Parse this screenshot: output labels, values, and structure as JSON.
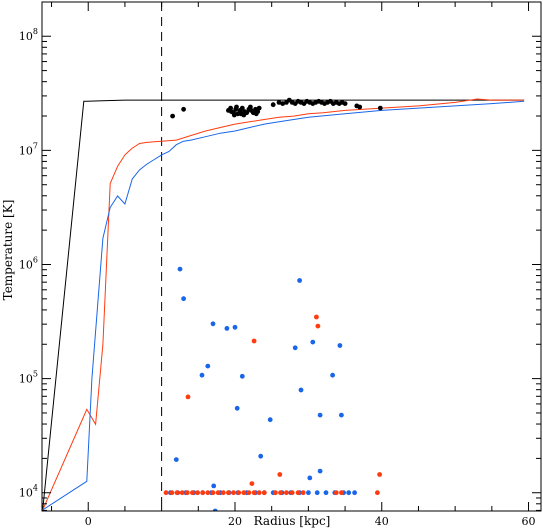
{
  "chart_data": {
    "type": "scatter",
    "title": "",
    "xlabel": "Radius [kpc]",
    "ylabel": "Temperature [K]",
    "xlim": [
      -6.3,
      61.7
    ],
    "ylim_log10": [
      3.84,
      8.3
    ],
    "yscale": "log",
    "grid": false,
    "x_ticks": [
      "0",
      "20",
      "40",
      "60"
    ],
    "x_tick_values": [
      0,
      20,
      40,
      60
    ],
    "y_ticks": [
      {
        "base": "10",
        "exp": "4",
        "value": 4
      },
      {
        "base": "10",
        "exp": "5",
        "value": 5
      },
      {
        "base": "10",
        "exp": "6",
        "value": 6
      },
      {
        "base": "10",
        "exp": "7",
        "value": 7
      },
      {
        "base": "10",
        "exp": "8",
        "value": 8
      }
    ],
    "vline": {
      "x": 10,
      "style": "dashed",
      "color": "#000000"
    },
    "colors": {
      "black": "#000000",
      "red": "#ff3c10",
      "blue": "#1a66e8"
    },
    "series": [
      {
        "kind": "line",
        "color": "#000000",
        "x": [
          -6.2,
          -0.6,
          -0.2,
          2,
          5,
          8,
          10,
          12,
          15,
          20,
          25,
          30,
          35,
          40,
          45,
          50,
          55,
          59.4
        ],
        "logT": [
          3.85,
          7.43,
          7.43,
          7.435,
          7.44,
          7.44,
          7.44,
          7.44,
          7.44,
          7.44,
          7.44,
          7.44,
          7.44,
          7.44,
          7.44,
          7.44,
          7.44,
          7.44
        ]
      },
      {
        "kind": "line",
        "color": "#ff3c10",
        "x": [
          -6.2,
          -0.2,
          1,
          2,
          3,
          4,
          5,
          6,
          7,
          8,
          9,
          10,
          12,
          14,
          16,
          18,
          20,
          22,
          24,
          26,
          28,
          30,
          32,
          35,
          40,
          45,
          50,
          53,
          55,
          59.4
        ],
        "logT": [
          3.85,
          4.73,
          4.6,
          5.3,
          6.71,
          6.86,
          6.96,
          7.02,
          7.06,
          7.07,
          7.075,
          7.08,
          7.09,
          7.13,
          7.17,
          7.2,
          7.23,
          7.25,
          7.27,
          7.29,
          7.3,
          7.32,
          7.33,
          7.35,
          7.37,
          7.39,
          7.42,
          7.45,
          7.44,
          7.44
        ]
      },
      {
        "kind": "line",
        "color": "#1a66e8",
        "x": [
          -6.2,
          -0.2,
          0.5,
          2,
          3,
          4,
          5,
          6,
          7,
          8,
          9,
          10,
          11,
          12,
          13,
          14,
          16,
          18,
          20,
          22,
          24,
          26,
          28,
          30,
          35,
          40,
          45,
          50,
          55,
          59.4
        ],
        "logT": [
          3.85,
          4.1,
          5.0,
          6.23,
          6.5,
          6.6,
          6.53,
          6.75,
          6.83,
          6.88,
          6.92,
          6.96,
          6.99,
          7.05,
          7.08,
          7.09,
          7.12,
          7.15,
          7.17,
          7.2,
          7.23,
          7.25,
          7.27,
          7.29,
          7.32,
          7.35,
          7.37,
          7.39,
          7.41,
          7.43
        ]
      },
      {
        "kind": "points",
        "color": "#000000",
        "points": [
          [
            11.5,
            7.3
          ],
          [
            13,
            7.36
          ],
          [
            19.1,
            7.35
          ],
          [
            19.5,
            7.34
          ],
          [
            19.8,
            7.33
          ],
          [
            20.1,
            7.36
          ],
          [
            20.4,
            7.32
          ],
          [
            20.7,
            7.35
          ],
          [
            21,
            7.37
          ],
          [
            21.3,
            7.34
          ],
          [
            21.6,
            7.33
          ],
          [
            21.9,
            7.36
          ],
          [
            22.2,
            7.35
          ],
          [
            22.5,
            7.33
          ],
          [
            22.8,
            7.36
          ],
          [
            23.1,
            7.34
          ],
          [
            19.4,
            7.37
          ],
          [
            20.2,
            7.38
          ],
          [
            21.2,
            7.31
          ],
          [
            22.1,
            7.38
          ],
          [
            23.3,
            7.37
          ],
          [
            20.8,
            7.32
          ],
          [
            22.9,
            7.32
          ],
          [
            19.9,
            7.31
          ],
          [
            25.2,
            7.4
          ],
          [
            26,
            7.42
          ],
          [
            26.5,
            7.41
          ],
          [
            27,
            7.42
          ],
          [
            27.4,
            7.44
          ],
          [
            27.8,
            7.42
          ],
          [
            28.2,
            7.41
          ],
          [
            28.6,
            7.43
          ],
          [
            29,
            7.42
          ],
          [
            29.4,
            7.41
          ],
          [
            29.8,
            7.43
          ],
          [
            30.2,
            7.42
          ],
          [
            30.6,
            7.41
          ],
          [
            31,
            7.42
          ],
          [
            31.4,
            7.43
          ],
          [
            31.8,
            7.42
          ],
          [
            32.2,
            7.41
          ],
          [
            32.6,
            7.42
          ],
          [
            33,
            7.43
          ],
          [
            33.4,
            7.41
          ],
          [
            33.8,
            7.42
          ],
          [
            34.2,
            7.41
          ],
          [
            34.6,
            7.42
          ],
          [
            35,
            7.41
          ],
          [
            36.6,
            7.39
          ],
          [
            37,
            7.38
          ],
          [
            39.8,
            7.37
          ]
        ]
      },
      {
        "kind": "points",
        "color": "#1a66e8",
        "points": [
          [
            12.5,
            5.96
          ],
          [
            13,
            5.7
          ],
          [
            17,
            5.48
          ],
          [
            20,
            5.45
          ],
          [
            18.9,
            5.44
          ],
          [
            15.5,
            5.03
          ],
          [
            16.3,
            5.11
          ],
          [
            21,
            5.02
          ],
          [
            20.3,
            4.74
          ],
          [
            24.8,
            4.64
          ],
          [
            28.2,
            5.27
          ],
          [
            29,
            4.9
          ],
          [
            28.8,
            5.86
          ],
          [
            30.6,
            5.32
          ],
          [
            31.6,
            4.68
          ],
          [
            33.3,
            5.03
          ],
          [
            34.3,
            5.29
          ],
          [
            34.5,
            4.68
          ],
          [
            12,
            4.29
          ],
          [
            23.5,
            4.32
          ],
          [
            31.6,
            4.19
          ],
          [
            30.2,
            4.13
          ],
          [
            17.1,
            4.06
          ],
          [
            17.3,
            3.84
          ],
          [
            35.5,
            4.0
          ],
          [
            36.3,
            4.0
          ],
          [
            11.2,
            4.0
          ],
          [
            12.2,
            4.0
          ],
          [
            13.3,
            4.0
          ],
          [
            14.4,
            4.0
          ],
          [
            15.6,
            4.0
          ],
          [
            16.8,
            4.0
          ],
          [
            18,
            4.0
          ],
          [
            19.2,
            4.0
          ],
          [
            20.4,
            4.0
          ],
          [
            21.6,
            4.0
          ],
          [
            22.8,
            4.0
          ],
          [
            24,
            4.0
          ],
          [
            25.2,
            4.0
          ],
          [
            26.4,
            4.0
          ],
          [
            27.6,
            4.0
          ],
          [
            28.8,
            4.0
          ],
          [
            30,
            4.0
          ],
          [
            31.2,
            4.0
          ],
          [
            32.4,
            4.0
          ],
          [
            33.6,
            4.0
          ],
          [
            34.8,
            4.0
          ]
        ]
      },
      {
        "kind": "points",
        "color": "#ff3c10",
        "points": [
          [
            13.6,
            4.84
          ],
          [
            22.6,
            5.33
          ],
          [
            31.1,
            5.54
          ],
          [
            31.3,
            5.46
          ],
          [
            22.3,
            4.08
          ],
          [
            26.1,
            4.16
          ],
          [
            39.7,
            4.16
          ],
          [
            39.4,
            4.0
          ],
          [
            10.6,
            4.0
          ],
          [
            11.4,
            4.0
          ],
          [
            12.1,
            4.0
          ],
          [
            12.8,
            4.0
          ],
          [
            13.5,
            4.0
          ],
          [
            14.2,
            4.0
          ],
          [
            14.9,
            4.0
          ],
          [
            15.6,
            4.0
          ],
          [
            16.3,
            4.0
          ],
          [
            17,
            4.0
          ],
          [
            17.7,
            4.0
          ],
          [
            18.4,
            4.0
          ],
          [
            19.1,
            4.0
          ],
          [
            19.8,
            4.0
          ],
          [
            20.5,
            4.0
          ],
          [
            21.2,
            4.0
          ],
          [
            21.9,
            4.0
          ],
          [
            22.6,
            4.0
          ],
          [
            23.3,
            4.0
          ],
          [
            24,
            4.0
          ],
          [
            25.5,
            4.0
          ],
          [
            26.2,
            4.0
          ],
          [
            27,
            4.0
          ],
          [
            27.8,
            4.0
          ],
          [
            28.6,
            4.0
          ],
          [
            29.3,
            4.0
          ],
          [
            33.8,
            4.0
          ],
          [
            34.5,
            4.0
          ]
        ]
      }
    ]
  }
}
